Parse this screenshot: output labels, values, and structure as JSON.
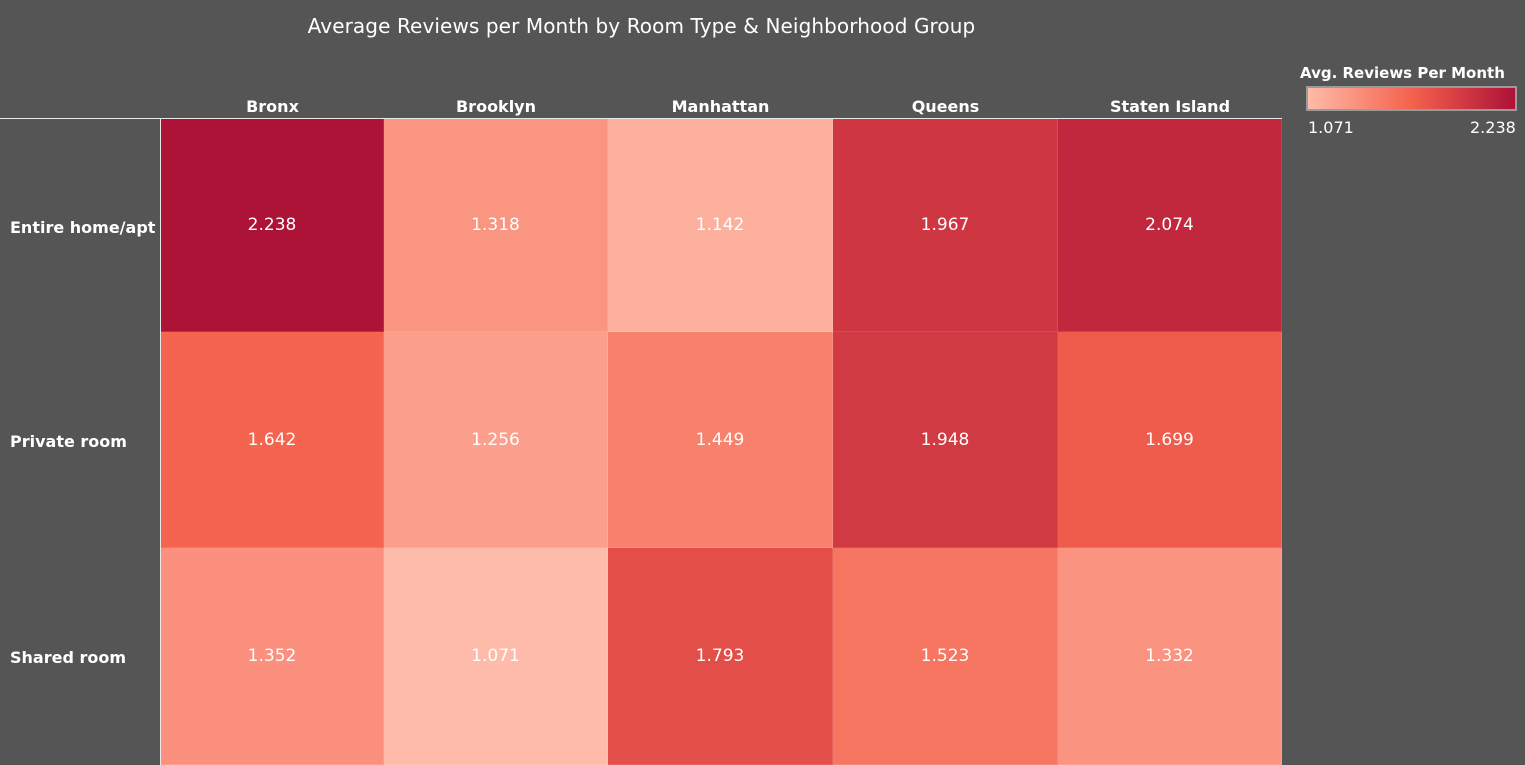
{
  "chart_data": {
    "type": "heatmap",
    "title": "Average Reviews per Month by Room Type & Neighborhood Group",
    "columns": [
      "Bronx",
      "Brooklyn",
      "Manhattan",
      "Queens",
      "Staten Island"
    ],
    "rows": [
      "Entire home/apt",
      "Private room",
      "Shared room"
    ],
    "values": [
      [
        "2.238",
        "1.318",
        "1.142",
        "1.967",
        "2.074"
      ],
      [
        "1.642",
        "1.256",
        "1.449",
        "1.948",
        "1.699"
      ],
      [
        "1.352",
        "1.071",
        "1.793",
        "1.523",
        "1.332"
      ]
    ],
    "legend": {
      "title": "Avg. Reviews Per Month",
      "min": "1.071",
      "max": "2.238",
      "position": "top-right"
    },
    "colors": {
      "low": "#ffbba9",
      "mid": "#f4624d",
      "high": "#ad1237",
      "background": "#555555"
    }
  }
}
